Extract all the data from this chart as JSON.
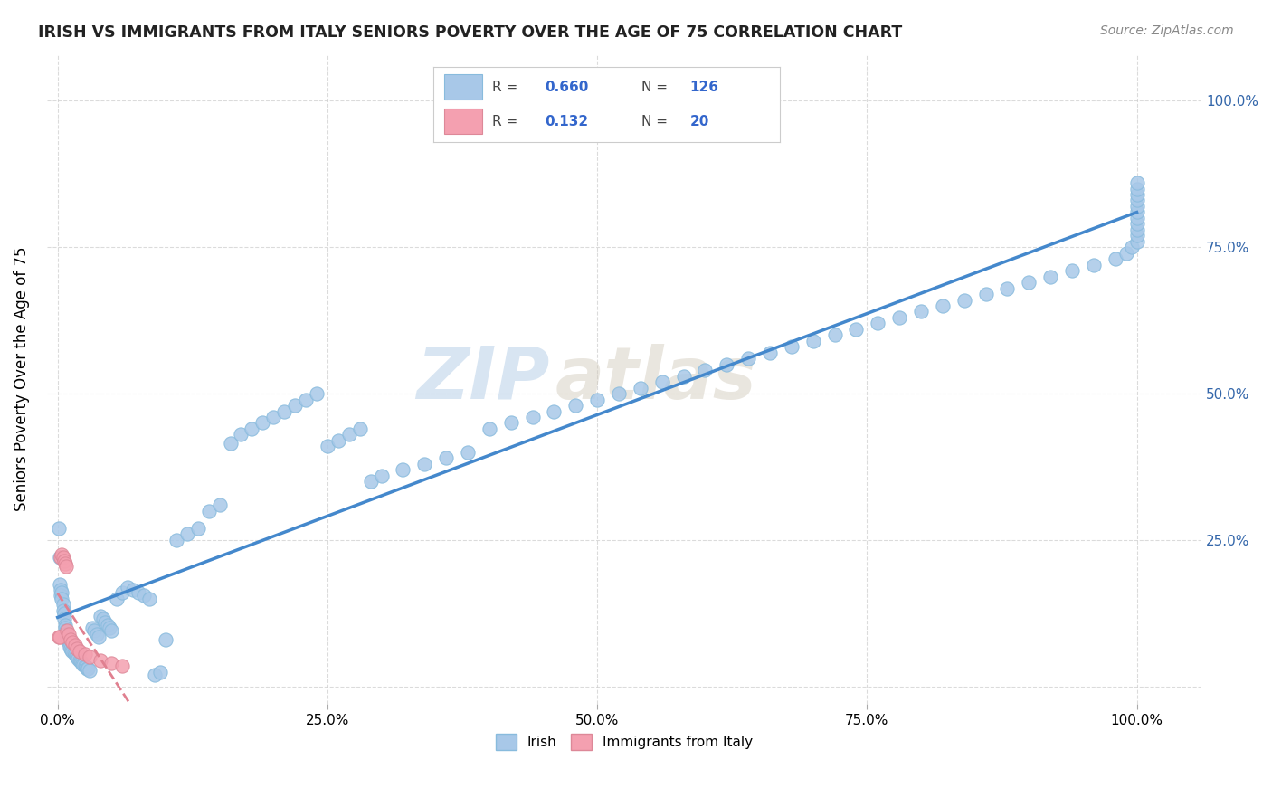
{
  "title": "IRISH VS IMMIGRANTS FROM ITALY SENIORS POVERTY OVER THE AGE OF 75 CORRELATION CHART",
  "source": "Source: ZipAtlas.com",
  "ylabel": "Seniors Poverty Over the Age of 75",
  "r_irish": 0.66,
  "n_irish": 126,
  "r_italy": 0.132,
  "n_italy": 20,
  "irish_color": "#a8c8e8",
  "italy_color": "#f4a0b0",
  "irish_line_color": "#4488cc",
  "italy_line_color": "#e08090",
  "background_color": "#ffffff",
  "grid_color": "#cccccc",
  "watermark_zip": "ZIP",
  "watermark_atlas": "atlas",
  "irish_x": [
    0.001,
    0.002,
    0.002,
    0.003,
    0.003,
    0.004,
    0.004,
    0.005,
    0.005,
    0.006,
    0.006,
    0.007,
    0.007,
    0.008,
    0.008,
    0.009,
    0.009,
    0.01,
    0.01,
    0.011,
    0.011,
    0.012,
    0.013,
    0.014,
    0.015,
    0.016,
    0.017,
    0.018,
    0.019,
    0.02,
    0.021,
    0.022,
    0.023,
    0.024,
    0.025,
    0.026,
    0.027,
    0.028,
    0.03,
    0.032,
    0.034,
    0.036,
    0.038,
    0.04,
    0.042,
    0.044,
    0.046,
    0.048,
    0.05,
    0.055,
    0.06,
    0.065,
    0.07,
    0.075,
    0.08,
    0.085,
    0.09,
    0.095,
    0.1,
    0.11,
    0.12,
    0.13,
    0.14,
    0.15,
    0.16,
    0.17,
    0.18,
    0.19,
    0.2,
    0.21,
    0.22,
    0.23,
    0.24,
    0.25,
    0.26,
    0.27,
    0.28,
    0.29,
    0.3,
    0.32,
    0.34,
    0.36,
    0.38,
    0.4,
    0.42,
    0.44,
    0.46,
    0.48,
    0.5,
    0.52,
    0.54,
    0.56,
    0.58,
    0.6,
    0.62,
    0.64,
    0.66,
    0.68,
    0.7,
    0.72,
    0.74,
    0.76,
    0.78,
    0.8,
    0.82,
    0.84,
    0.86,
    0.88,
    0.9,
    0.92,
    0.94,
    0.96,
    0.98,
    0.99,
    0.995,
    1.0,
    1.0,
    1.0,
    1.0,
    1.0,
    1.0,
    1.0,
    1.0,
    1.0,
    1.0,
    1.0
  ],
  "irish_y": [
    0.27,
    0.22,
    0.175,
    0.165,
    0.155,
    0.16,
    0.15,
    0.14,
    0.13,
    0.125,
    0.115,
    0.105,
    0.1,
    0.095,
    0.09,
    0.085,
    0.082,
    0.078,
    0.075,
    0.072,
    0.068,
    0.065,
    0.062,
    0.06,
    0.058,
    0.055,
    0.052,
    0.05,
    0.048,
    0.045,
    0.043,
    0.041,
    0.039,
    0.037,
    0.035,
    0.033,
    0.031,
    0.03,
    0.028,
    0.1,
    0.095,
    0.09,
    0.085,
    0.12,
    0.115,
    0.11,
    0.105,
    0.1,
    0.095,
    0.15,
    0.16,
    0.17,
    0.165,
    0.16,
    0.155,
    0.15,
    0.02,
    0.025,
    0.08,
    0.25,
    0.26,
    0.27,
    0.3,
    0.31,
    0.415,
    0.43,
    0.44,
    0.45,
    0.46,
    0.47,
    0.48,
    0.49,
    0.5,
    0.41,
    0.42,
    0.43,
    0.44,
    0.35,
    0.36,
    0.37,
    0.38,
    0.39,
    0.4,
    0.44,
    0.45,
    0.46,
    0.47,
    0.48,
    0.49,
    0.5,
    0.51,
    0.52,
    0.53,
    0.54,
    0.55,
    0.56,
    0.57,
    0.58,
    0.59,
    0.6,
    0.61,
    0.62,
    0.63,
    0.64,
    0.65,
    0.66,
    0.67,
    0.68,
    0.69,
    0.7,
    0.71,
    0.72,
    0.73,
    0.74,
    0.75,
    0.76,
    0.77,
    0.78,
    0.79,
    0.8,
    0.81,
    0.82,
    0.83,
    0.84,
    0.85,
    0.86
  ],
  "italy_x": [
    0.001,
    0.002,
    0.003,
    0.004,
    0.005,
    0.006,
    0.007,
    0.008,
    0.009,
    0.01,
    0.012,
    0.014,
    0.016,
    0.018,
    0.02,
    0.025,
    0.03,
    0.04,
    0.05,
    0.06
  ],
  "italy_y": [
    0.085,
    0.085,
    0.22,
    0.225,
    0.22,
    0.215,
    0.21,
    0.205,
    0.095,
    0.09,
    0.08,
    0.075,
    0.07,
    0.065,
    0.06,
    0.055,
    0.05,
    0.045,
    0.04,
    0.035
  ],
  "x_tick_labels": [
    "0.0%",
    "25.0%",
    "50.0%",
    "75.0%",
    "100.0%"
  ],
  "x_ticks": [
    0.0,
    0.25,
    0.5,
    0.75,
    1.0
  ],
  "y_ticks": [
    0.0,
    0.25,
    0.5,
    0.75,
    1.0
  ],
  "y_tick_labels_right": [
    "",
    "25.0%",
    "50.0%",
    "75.0%",
    "100.0%"
  ]
}
